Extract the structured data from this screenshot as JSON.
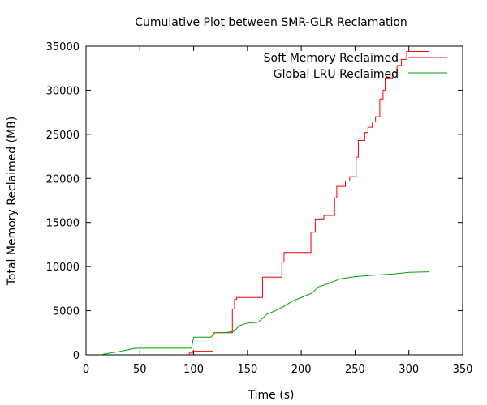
{
  "chart_data": {
    "type": "line",
    "title": "Cumulative Plot between SMR-GLR Reclamation",
    "xlabel": "Time (s)",
    "ylabel": "Total Memory Reclaimed (MB)",
    "xlim": [
      0,
      350
    ],
    "ylim": [
      0,
      35000
    ],
    "xticks": [
      0,
      50,
      100,
      150,
      200,
      250,
      300,
      350
    ],
    "yticks": [
      0,
      5000,
      10000,
      15000,
      20000,
      25000,
      30000,
      35000
    ],
    "grid": false,
    "legend_position": "top-right",
    "series": [
      {
        "name": "Soft Memory Reclaimed",
        "color": "#ff0000",
        "step": true,
        "points": [
          [
            96,
            0
          ],
          [
            96,
            200
          ],
          [
            99,
            200
          ],
          [
            99,
            400
          ],
          [
            118,
            400
          ],
          [
            118,
            2500
          ],
          [
            136,
            2500
          ],
          [
            136,
            5200
          ],
          [
            138,
            5200
          ],
          [
            138,
            6300
          ],
          [
            140,
            6300
          ],
          [
            140,
            6500
          ],
          [
            164,
            6500
          ],
          [
            164,
            8800
          ],
          [
            182,
            8800
          ],
          [
            182,
            10500
          ],
          [
            184,
            10500
          ],
          [
            184,
            11600
          ],
          [
            209,
            11600
          ],
          [
            209,
            13900
          ],
          [
            213,
            13900
          ],
          [
            213,
            15400
          ],
          [
            221,
            15400
          ],
          [
            221,
            15800
          ],
          [
            231,
            15800
          ],
          [
            231,
            17800
          ],
          [
            233,
            17800
          ],
          [
            233,
            19100
          ],
          [
            241,
            19100
          ],
          [
            241,
            19700
          ],
          [
            245,
            19700
          ],
          [
            245,
            20200
          ],
          [
            251,
            20200
          ],
          [
            251,
            22400
          ],
          [
            253,
            22400
          ],
          [
            253,
            24300
          ],
          [
            259,
            24300
          ],
          [
            259,
            25200
          ],
          [
            262,
            25200
          ],
          [
            262,
            25800
          ],
          [
            266,
            25800
          ],
          [
            266,
            26400
          ],
          [
            269,
            26400
          ],
          [
            269,
            27000
          ],
          [
            273,
            27000
          ],
          [
            273,
            29000
          ],
          [
            276,
            29000
          ],
          [
            276,
            30000
          ],
          [
            278,
            30000
          ],
          [
            278,
            31400
          ],
          [
            285,
            31400
          ],
          [
            285,
            32000
          ],
          [
            289,
            32000
          ],
          [
            289,
            32800
          ],
          [
            293,
            32800
          ],
          [
            293,
            33500
          ],
          [
            298,
            33500
          ],
          [
            298,
            34400
          ],
          [
            319,
            34400
          ]
        ]
      },
      {
        "name": "Global LRU Reclaimed",
        "color": "#00a000",
        "step": false,
        "points": [
          [
            13,
            0
          ],
          [
            20,
            150
          ],
          [
            30,
            350
          ],
          [
            40,
            600
          ],
          [
            45,
            720
          ],
          [
            50,
            750
          ],
          [
            75,
            750
          ],
          [
            98,
            750
          ],
          [
            100,
            2000
          ],
          [
            116,
            2000
          ],
          [
            120,
            2500
          ],
          [
            130,
            2500
          ],
          [
            138,
            2700
          ],
          [
            142,
            3300
          ],
          [
            150,
            3600
          ],
          [
            160,
            3700
          ],
          [
            168,
            4600
          ],
          [
            176,
            5000
          ],
          [
            184,
            5500
          ],
          [
            192,
            6100
          ],
          [
            200,
            6500
          ],
          [
            210,
            7000
          ],
          [
            216,
            7700
          ],
          [
            226,
            8100
          ],
          [
            236,
            8600
          ],
          [
            250,
            8850
          ],
          [
            265,
            9000
          ],
          [
            285,
            9150
          ],
          [
            300,
            9350
          ],
          [
            319,
            9400
          ]
        ]
      }
    ]
  }
}
